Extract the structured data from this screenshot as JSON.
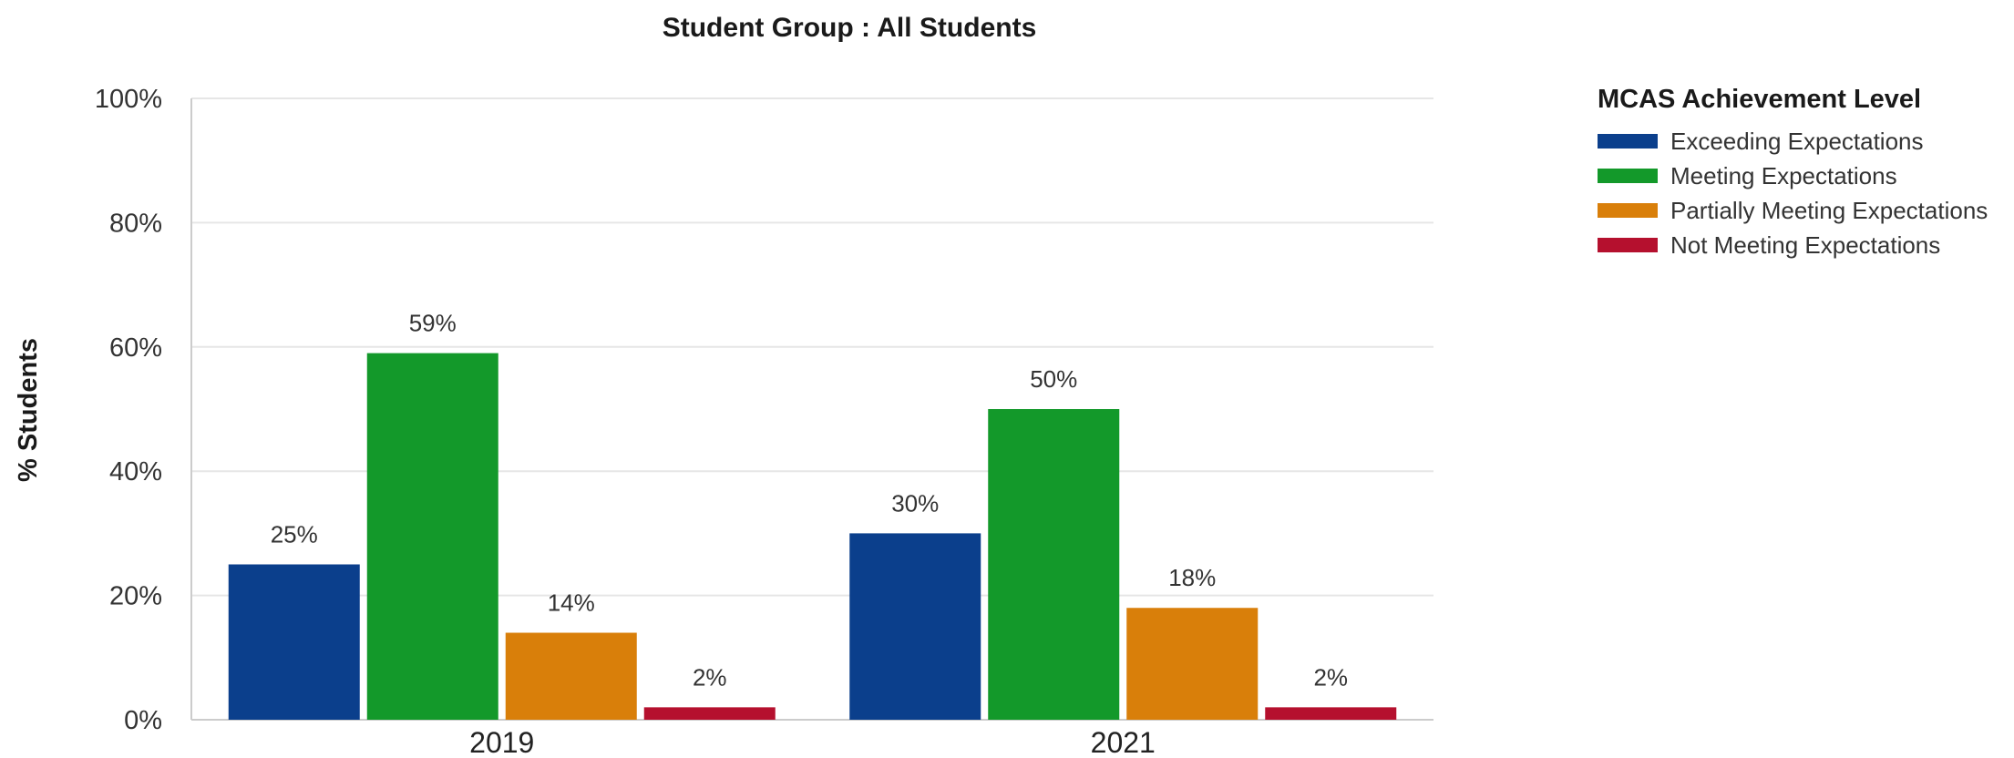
{
  "chart_data": {
    "type": "bar",
    "title": "Student Group : All Students",
    "ylabel": "% Students",
    "xlabel": "",
    "categories": [
      "2019",
      "2021"
    ],
    "ylim": [
      0,
      100
    ],
    "yticks": [
      "0%",
      "20%",
      "40%",
      "60%",
      "80%",
      "100%"
    ],
    "ytick_values": [
      0,
      20,
      40,
      60,
      80,
      100
    ],
    "grid": true,
    "legend": {
      "title": "MCAS Achievement Level",
      "placement": "right"
    },
    "series": [
      {
        "name": "Exceeding Expectations",
        "color": "#0b3f8c",
        "values": [
          25,
          30
        ],
        "labels": [
          "25%",
          "30%"
        ]
      },
      {
        "name": "Meeting Expectations",
        "color": "#13992a",
        "values": [
          59,
          50
        ],
        "labels": [
          "59%",
          "50%"
        ]
      },
      {
        "name": "Partially Meeting Expectations",
        "color": "#d97f0a",
        "values": [
          14,
          18
        ],
        "labels": [
          "14%",
          "18%"
        ]
      },
      {
        "name": "Not Meeting Expectations",
        "color": "#b5102e",
        "values": [
          2,
          2
        ],
        "labels": [
          "2%",
          "2%"
        ]
      }
    ]
  }
}
